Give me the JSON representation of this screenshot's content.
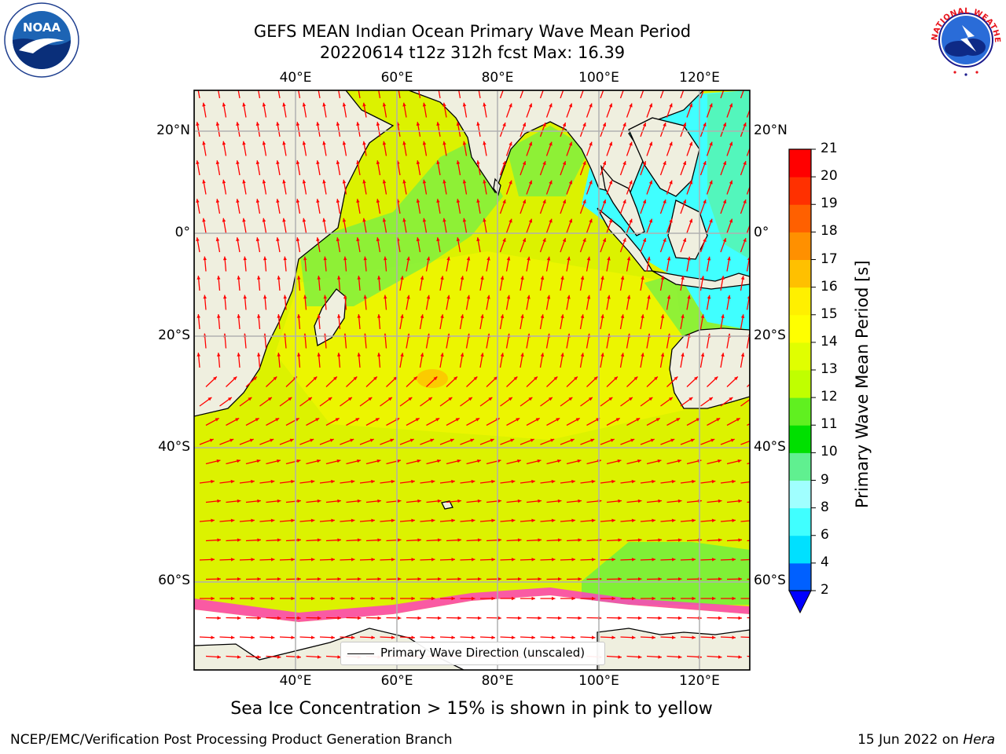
{
  "header": {
    "title_line1": "GEFS MEAN Indian Ocean Primary Wave Mean Period",
    "title_line2": "20220614 t12z 312h fcst   Max: 16.39"
  },
  "logos": {
    "left": {
      "text": "NOAA",
      "ring_text": "NATIONAL OCEANIC AND ATMOSPHERIC ADMINISTRATION · U.S. DEPARTMENT OF COMMERCE"
    },
    "right": {
      "ring_text": "NATIONAL WEATHER SERVICE"
    }
  },
  "map": {
    "lon_range": [
      20,
      130
    ],
    "lat_range": [
      -73,
      27
    ],
    "lon_ticks": [
      "40°E",
      "60°E",
      "80°E",
      "100°E",
      "120°E"
    ],
    "lat_ticks": [
      "20°N",
      "0°",
      "20°S",
      "40°S",
      "60°S"
    ],
    "legend_label": "Primary Wave Direction (unscaled)",
    "colors": {
      "ocean": "#dcf200",
      "land": "#efefdf",
      "ice": "#ffffff",
      "arrow": "#ff0000",
      "grid": "#b0b0b0"
    }
  },
  "colorbar": {
    "label": "Primary Wave Mean Period [s]",
    "levels": [
      2,
      4,
      6,
      8,
      9,
      10,
      11,
      12,
      13,
      14,
      15,
      16,
      17,
      18,
      19,
      20,
      21
    ],
    "colors": [
      "#0060ff",
      "#00e0ff",
      "#40ffff",
      "#a0ffff",
      "#60f090",
      "#00e000",
      "#60f020",
      "#c0ff00",
      "#e0ff00",
      "#ffff00",
      "#fff000",
      "#ffc000",
      "#ff9000",
      "#ff6000",
      "#ff3000",
      "#ff0000"
    ],
    "extend_color": "#0000ff"
  },
  "caption": "Sea Ice Concentration > 15% is shown in pink to yellow",
  "footer": {
    "left": "NCEP/EMC/Verification Post Processing Product Generation Branch",
    "right_date": "15 Jun 2022 on ",
    "right_machine": "Hera"
  }
}
